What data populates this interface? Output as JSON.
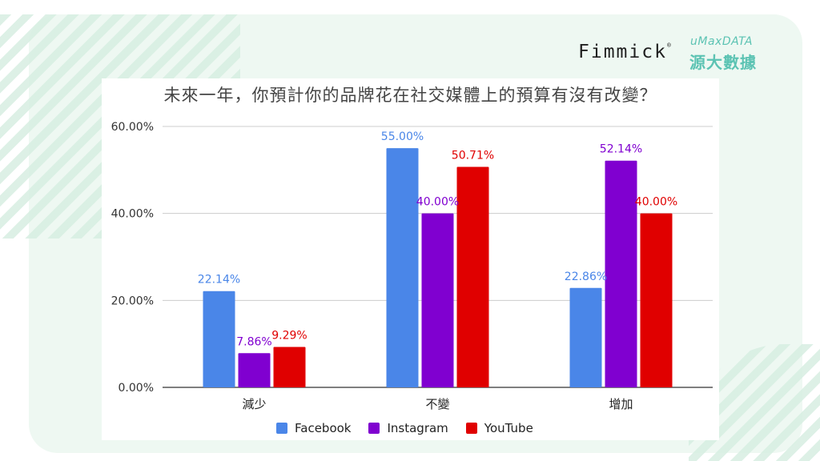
{
  "brand": {
    "fimmick": "Fimmick",
    "fimmick_mark": "®",
    "umax": "uMaxDATA",
    "umax_cn": "源大數據"
  },
  "chart_data": {
    "type": "bar",
    "title": "未來一年，你預計你的品牌花在社交媒體上的預算有沒有改變？",
    "categories": [
      "減少",
      "不變",
      "增加"
    ],
    "series": [
      {
        "name": "Facebook",
        "color": "#4a86e8",
        "label_color": "#4a86e8",
        "values": [
          22.14,
          55.0,
          22.86
        ],
        "labels": [
          "22.14%",
          "55.00%",
          "22.86%"
        ]
      },
      {
        "name": "Instagram",
        "color": "#8000d0",
        "label_color": "#8000d0",
        "values": [
          7.86,
          40.0,
          52.14
        ],
        "labels": [
          "7.86%",
          "40.00%",
          "52.14%"
        ]
      },
      {
        "name": "YouTube",
        "color": "#e00000",
        "label_color": "#e00000",
        "values": [
          9.29,
          50.71,
          40.0
        ],
        "labels": [
          "9.29%",
          "50.71%",
          "40.00%"
        ]
      }
    ],
    "yticks": [
      "0.00%",
      "20.00%",
      "40.00%",
      "60.00%"
    ],
    "ytick_values": [
      0,
      20,
      40,
      60
    ],
    "ylim": [
      0,
      60
    ],
    "grid": true,
    "legend_position": "bottom"
  }
}
